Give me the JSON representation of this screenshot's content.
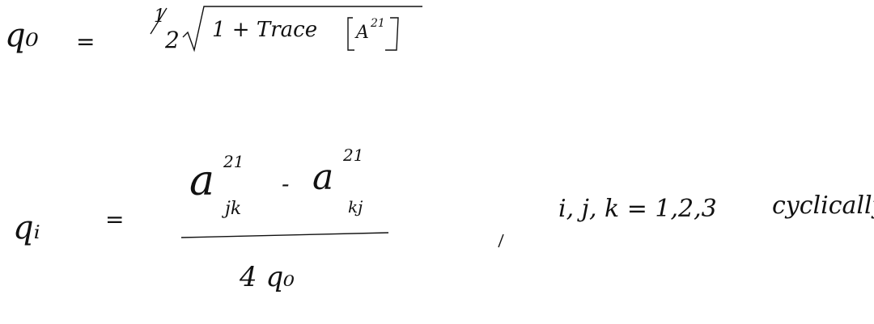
{
  "equation1": {
    "lhs": "q₀",
    "equals": "=",
    "half_num": "1",
    "half_den": "2",
    "radicand_prefix": "1 + Trace",
    "matrix_symbol": "A",
    "matrix_superscript": "21"
  },
  "equation2": {
    "lhs": "qᵢ",
    "equals": "=",
    "num_term1_base": "a",
    "num_term1_sup": "21",
    "num_term1_sub": "jk",
    "minus": "-",
    "num_term2_base": "a",
    "num_term2_sup": "21",
    "num_term2_sub": "kj",
    "denominator": "4 q₀",
    "comma": ",",
    "condition": "i, j, k = 1,2,3",
    "condition_suffix": "cyclically"
  }
}
